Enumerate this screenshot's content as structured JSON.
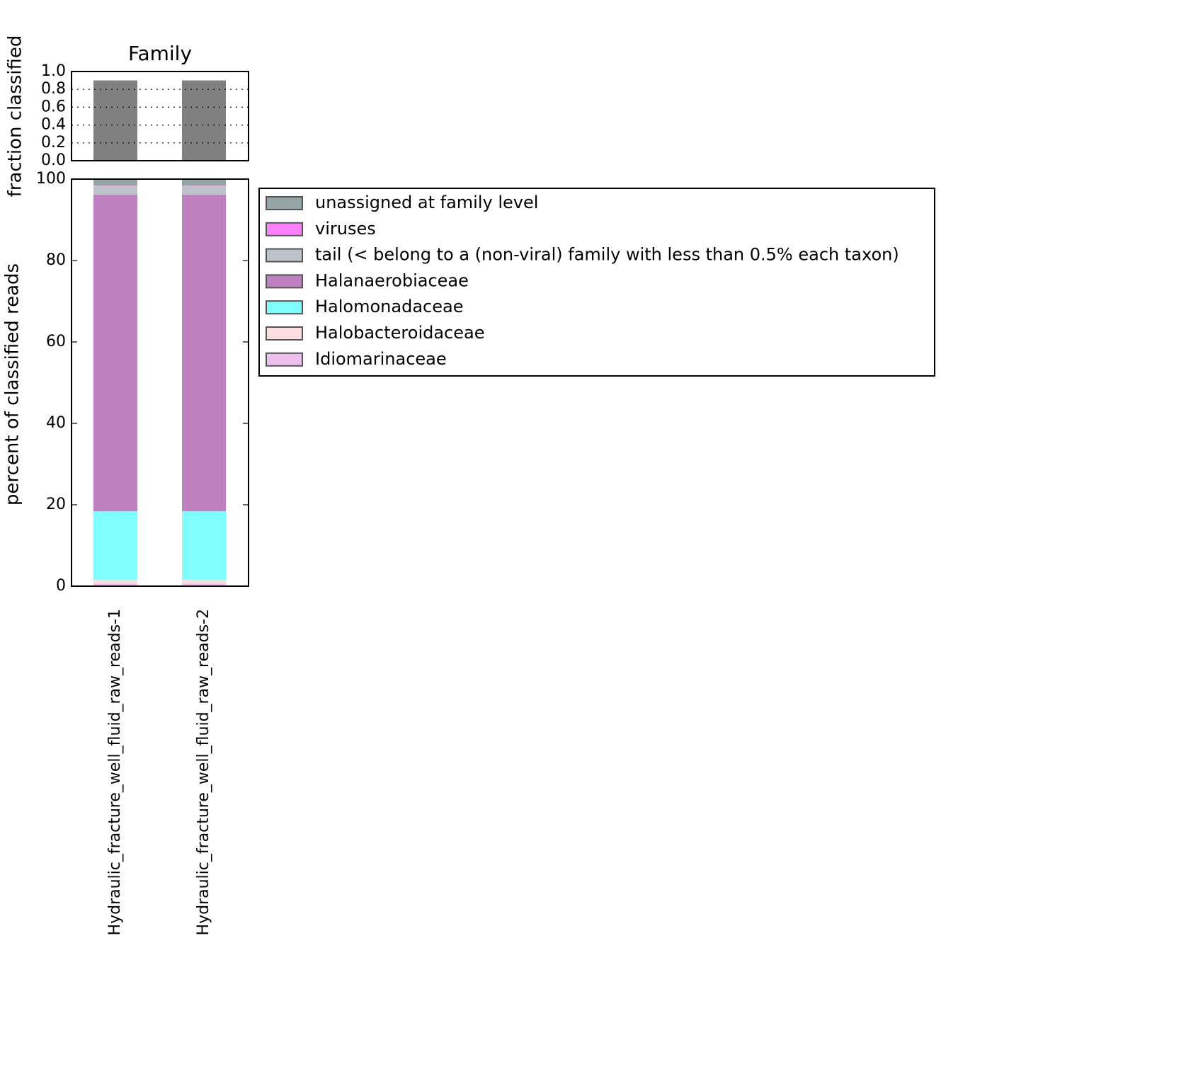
{
  "chart_data": [
    {
      "type": "bar",
      "title": "Family",
      "ylabel": "fraction classified",
      "values": [
        0.9,
        0.9
      ],
      "color": "#808080",
      "ylim": [
        0,
        1
      ],
      "yticks": [
        {
          "value": 0,
          "label": "0.0"
        },
        0.2,
        0.4,
        0.6,
        0.8,
        {
          "value": 1,
          "label": "1.0"
        }
      ],
      "grid": true
    },
    {
      "type": "stacked_bar",
      "ylabel": "percent of classified reads",
      "categories": [
        "Hydraulic_fracture_well_fluid_raw_reads-1",
        "Hydraulic_fracture_well_fluid_raw_reads-2"
      ],
      "series": [
        {
          "name": "unassigned at family level",
          "color": "#95a5a6",
          "values": [
            1.6,
            1.6
          ]
        },
        {
          "name": "viruses",
          "color": "#ff80ff",
          "values": [
            0.1,
            0.1
          ]
        },
        {
          "name": "tail (< belong to a (non-viral) family with less than 0.5% each taxon)",
          "color": "#bdc3cb",
          "values": [
            2.1,
            2.1
          ]
        },
        {
          "name": "Halanaerobiaceae",
          "color": "#bf80bf",
          "values": [
            77.8,
            77.8
          ]
        },
        {
          "name": "Halomonadaceae",
          "color": "#80ffff",
          "values": [
            16.8,
            16.8
          ]
        },
        {
          "name": "Halobacteroidaceae",
          "color": "#ffdde0",
          "values": [
            1.0,
            1.0
          ]
        },
        {
          "name": "Idiomarinaceae",
          "color": "#ecbfec",
          "values": [
            0.6,
            0.6
          ]
        }
      ],
      "ylim": [
        0,
        100
      ],
      "yticks": [
        0,
        20,
        40,
        60,
        80,
        100
      ],
      "legend": "right"
    }
  ]
}
